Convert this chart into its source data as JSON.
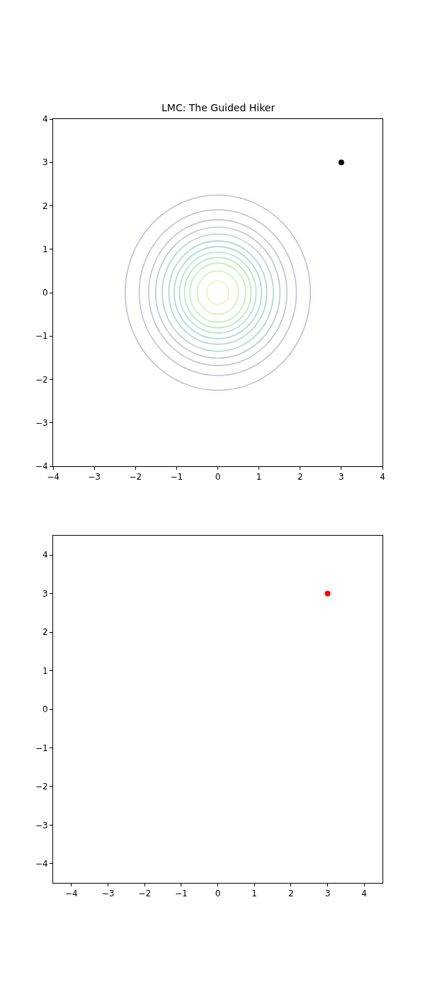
{
  "chart_data": [
    {
      "type": "scatter",
      "title": "LMC: The Guided Hiker",
      "xlim": [
        -4,
        4
      ],
      "ylim": [
        -4,
        4
      ],
      "xticks": [
        -4,
        -3,
        -2,
        -1,
        0,
        1,
        2,
        3,
        4
      ],
      "yticks": [
        -4,
        -3,
        -2,
        -1,
        0,
        1,
        2,
        3,
        4
      ],
      "grid": false,
      "series": [
        {
          "marker": "circle",
          "color": "#000000",
          "x": [
            3
          ],
          "values": [
            3
          ]
        }
      ]
    },
    {
      "type": "scatter",
      "xlim": [
        -4.5,
        4.5
      ],
      "ylim": [
        -4.5,
        4.5
      ],
      "xticks": [
        -4,
        -3,
        -2,
        -1,
        0,
        1,
        2,
        3,
        4
      ],
      "yticks": [
        -4,
        -3,
        -2,
        -1,
        0,
        1,
        2,
        3,
        4
      ],
      "grid": false,
      "series": [
        {
          "marker": "circle",
          "color": "#ff0000",
          "x": [
            3
          ],
          "values": [
            3
          ]
        }
      ]
    }
  ]
}
